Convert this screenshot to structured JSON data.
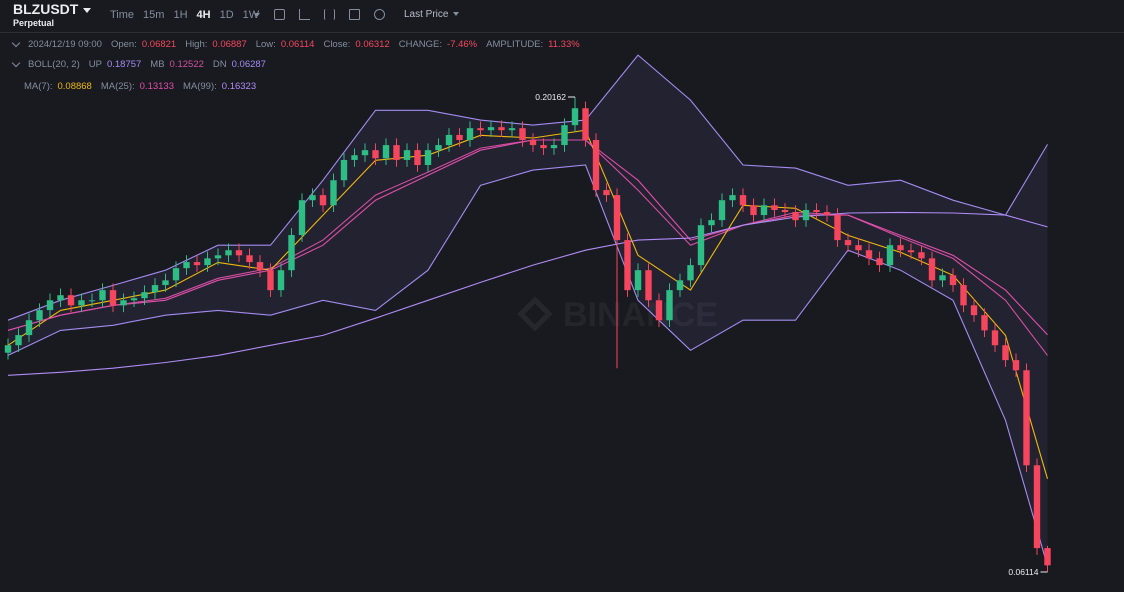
{
  "header": {
    "symbol": "BLZUSDT",
    "contract": "Perpetual",
    "intervals": [
      "Time",
      "15m",
      "1H",
      "4H",
      "1D",
      "1W"
    ],
    "active_interval": 3,
    "price_type": "Last Price"
  },
  "info": {
    "date": "2024/12/19 09:00",
    "fields": [
      {
        "label": "Open:",
        "value": 0.06821
      },
      {
        "label": "High:",
        "value": 0.06887
      },
      {
        "label": "Low:",
        "value": 0.06114
      },
      {
        "label": "Close:",
        "value": 0.06312
      },
      {
        "label": "CHANGE:",
        "value": "-7.46%"
      },
      {
        "label": "AMPLITUDE:",
        "value": "11.33%"
      }
    ]
  },
  "chart_data": {
    "type": "candlestick",
    "watermark": "BINANCE",
    "up_color": "#2ebd85",
    "down_color": "#f6465d",
    "open": [
      0.126,
      0.1282,
      0.1312,
      0.1356,
      0.1386,
      0.1415,
      0.143,
      0.14,
      0.1415,
      0.1415,
      0.1445,
      0.14,
      0.1415,
      0.1421,
      0.1439,
      0.146,
      0.1474,
      0.151,
      0.1528,
      0.1519,
      0.1539,
      0.1548,
      0.1563,
      0.1548,
      0.1528,
      0.1504,
      0.1445,
      0.1504,
      0.1608,
      0.1711,
      0.1726,
      0.1696,
      0.177,
      0.183,
      0.1844,
      0.1859,
      0.1835,
      0.1874,
      0.183,
      0.1859,
      0.1815,
      0.1859,
      0.1874,
      0.1904,
      0.1889,
      0.1924,
      0.1918,
      0.1927,
      0.1918,
      0.1924,
      0.1889,
      0.1874,
      0.1865,
      0.1874,
      0.1933,
      0.1983,
      0.1889,
      0.1741,
      0.1726,
      0.1593,
      0.1445,
      0.1504,
      0.1415,
      0.1356,
      0.1445,
      0.1474,
      0.1519,
      0.1637,
      0.1652,
      0.1711,
      0.1726,
      0.1696,
      0.1667,
      0.1696,
      0.1682,
      0.1676,
      0.1652,
      0.1682,
      0.1676,
      0.1667,
      0.1593,
      0.1578,
      0.1563,
      0.1539,
      0.1519,
      0.1578,
      0.1563,
      0.1557,
      0.1539,
      0.1474,
      0.1489,
      0.146,
      0.14,
      0.1371,
      0.1326,
      0.1282,
      0.1238,
      0.1208,
      0.0927,
      0.06821
    ],
    "high": [
      0.1302,
      0.1332,
      0.1376,
      0.1406,
      0.1435,
      0.145,
      0.145,
      0.1435,
      0.1435,
      0.1465,
      0.1465,
      0.1435,
      0.1441,
      0.1459,
      0.148,
      0.1494,
      0.153,
      0.1548,
      0.1548,
      0.1559,
      0.1568,
      0.1583,
      0.1583,
      0.1568,
      0.1548,
      0.1524,
      0.1524,
      0.1628,
      0.1731,
      0.1746,
      0.1746,
      0.179,
      0.185,
      0.1864,
      0.1879,
      0.1879,
      0.1894,
      0.1894,
      0.1879,
      0.1879,
      0.1879,
      0.1894,
      0.1924,
      0.1924,
      0.1944,
      0.1944,
      0.1947,
      0.1947,
      0.1944,
      0.1944,
      0.1909,
      0.1894,
      0.1894,
      0.1953,
      0.20162,
      0.2003,
      0.1909,
      0.1761,
      0.1746,
      0.1613,
      0.1524,
      0.1524,
      0.1435,
      0.1465,
      0.1494,
      0.1539,
      0.1657,
      0.1672,
      0.1731,
      0.1746,
      0.1746,
      0.1716,
      0.1716,
      0.1716,
      0.1702,
      0.1696,
      0.1702,
      0.1702,
      0.1696,
      0.1687,
      0.1613,
      0.1598,
      0.1583,
      0.1559,
      0.1598,
      0.1598,
      0.1583,
      0.1577,
      0.1559,
      0.1509,
      0.1509,
      0.148,
      0.142,
      0.1391,
      0.1346,
      0.1302,
      0.1258,
      0.1228,
      0.0947,
      0.06887
    ],
    "low": [
      0.124,
      0.1262,
      0.1292,
      0.1336,
      0.1366,
      0.1395,
      0.138,
      0.138,
      0.1395,
      0.1395,
      0.138,
      0.138,
      0.1395,
      0.1401,
      0.1419,
      0.144,
      0.1454,
      0.149,
      0.1499,
      0.1499,
      0.1519,
      0.1528,
      0.1528,
      0.1508,
      0.1484,
      0.1425,
      0.1425,
      0.1484,
      0.1588,
      0.1691,
      0.1676,
      0.1676,
      0.175,
      0.181,
      0.1824,
      0.1815,
      0.1815,
      0.181,
      0.181,
      0.1795,
      0.1795,
      0.1839,
      0.1854,
      0.1869,
      0.1869,
      0.1898,
      0.1898,
      0.1898,
      0.1898,
      0.1869,
      0.1854,
      0.1845,
      0.1845,
      0.1854,
      0.1913,
      0.1869,
      0.1721,
      0.1706,
      0.1214,
      0.1425,
      0.1425,
      0.1395,
      0.1336,
      0.1336,
      0.1425,
      0.1454,
      0.1499,
      0.1617,
      0.1632,
      0.1691,
      0.1676,
      0.1647,
      0.1647,
      0.1662,
      0.1656,
      0.1632,
      0.1632,
      0.1656,
      0.1647,
      0.1573,
      0.1558,
      0.1543,
      0.1519,
      0.1499,
      0.1499,
      0.1543,
      0.1537,
      0.1519,
      0.1454,
      0.1454,
      0.144,
      0.138,
      0.1351,
      0.1306,
      0.1262,
      0.1218,
      0.1188,
      0.0907,
      0.0662,
      0.06114
    ],
    "close": [
      0.1282,
      0.1312,
      0.1356,
      0.1386,
      0.1415,
      0.143,
      0.14,
      0.1415,
      0.1415,
      0.1445,
      0.14,
      0.1415,
      0.1421,
      0.1439,
      0.146,
      0.1474,
      0.151,
      0.1528,
      0.1519,
      0.1539,
      0.1548,
      0.1563,
      0.1548,
      0.1528,
      0.1504,
      0.1445,
      0.1504,
      0.1608,
      0.1711,
      0.1726,
      0.1696,
      0.177,
      0.183,
      0.1844,
      0.1859,
      0.1835,
      0.1874,
      0.183,
      0.1859,
      0.1815,
      0.1859,
      0.1874,
      0.1904,
      0.1889,
      0.1924,
      0.1918,
      0.1927,
      0.1918,
      0.1924,
      0.1889,
      0.1874,
      0.1865,
      0.1874,
      0.1933,
      0.1983,
      0.1889,
      0.1741,
      0.1726,
      0.1593,
      0.1445,
      0.1504,
      0.1415,
      0.1356,
      0.1445,
      0.1474,
      0.1519,
      0.1637,
      0.1652,
      0.1711,
      0.1726,
      0.1696,
      0.1667,
      0.1696,
      0.1682,
      0.1676,
      0.1652,
      0.1682,
      0.1676,
      0.1667,
      0.1593,
      0.1578,
      0.1563,
      0.1539,
      0.1519,
      0.1578,
      0.1563,
      0.1557,
      0.1539,
      0.1474,
      0.1489,
      0.146,
      0.14,
      0.1371,
      0.1326,
      0.1282,
      0.1238,
      0.1208,
      0.0927,
      0.06821,
      0.06312
    ],
    "line_x": [
      0,
      5,
      10,
      15,
      20,
      25,
      30,
      35,
      40,
      45,
      50,
      55,
      60,
      65,
      70,
      75,
      80,
      85,
      90,
      95,
      99
    ],
    "boll": {
      "label": "BOLL(20, 2)",
      "fill": "rgba(130,110,210,0.10)",
      "up": {
        "name": "UP",
        "color": "#a38cf0",
        "current": 0.18757,
        "values": [
          0.1356,
          0.1415,
          0.1459,
          0.1504,
          0.1578,
          0.1578,
          0.177,
          0.1977,
          0.1977,
          0.1948,
          0.1933,
          0.1948,
          0.214,
          0.2007,
          0.1815,
          0.1806,
          0.1755,
          0.177,
          0.1711,
          0.1667,
          0.1876
        ]
      },
      "mb": {
        "name": "MB",
        "color": "#d24fa0",
        "current": 0.12522,
        "values": [
          0.1326,
          0.1371,
          0.14,
          0.1421,
          0.148,
          0.151,
          0.1593,
          0.1726,
          0.1794,
          0.1865,
          0.1889,
          0.1889,
          0.1741,
          0.1578,
          0.1637,
          0.1675,
          0.1667,
          0.1601,
          0.1539,
          0.1415,
          0.1252
        ]
      },
      "dn": {
        "name": "DN",
        "color": "#a38cf0",
        "current": 0.06287,
        "values": [
          0.1252,
          0.1326,
          0.1341,
          0.1371,
          0.1385,
          0.1371,
          0.1415,
          0.1385,
          0.1504,
          0.1755,
          0.18,
          0.1815,
          0.1415,
          0.1267,
          0.1356,
          0.1356,
          0.1563,
          0.1504,
          0.1415,
          0.106,
          0.0629
        ]
      }
    },
    "ma": [
      {
        "name": "MA(7):",
        "color": "#f0b90b",
        "current": 0.08868,
        "values": [
          0.1282,
          0.1385,
          0.1415,
          0.1445,
          0.1527,
          0.1504,
          0.1667,
          0.1829,
          0.1844,
          0.1903,
          0.1895,
          0.1918,
          0.1548,
          0.1445,
          0.1696,
          0.1687,
          0.1607,
          0.1557,
          0.1489,
          0.1311,
          0.0887
        ]
      },
      {
        "name": "MA(25):",
        "color": "#e04fa8",
        "current": 0.13133,
        "values": [
          0.1326,
          0.1371,
          0.14,
          0.1415,
          0.1474,
          0.1504,
          0.1578,
          0.1711,
          0.1785,
          0.1859,
          0.1889,
          0.1889,
          0.177,
          0.1593,
          0.1637,
          0.1667,
          0.1667,
          0.1607,
          0.1548,
          0.1445,
          0.1313
        ]
      },
      {
        "name": "MA(99):",
        "color": "#b08cf5",
        "current": 0.16323,
        "values": [
          0.1193,
          0.1202,
          0.1214,
          0.1231,
          0.1252,
          0.1282,
          0.1311,
          0.1362,
          0.1415,
          0.1468,
          0.1519,
          0.1563,
          0.1593,
          0.1599,
          0.1637,
          0.1661,
          0.1673,
          0.1675,
          0.1673,
          0.1667,
          0.1632
        ]
      }
    ]
  }
}
